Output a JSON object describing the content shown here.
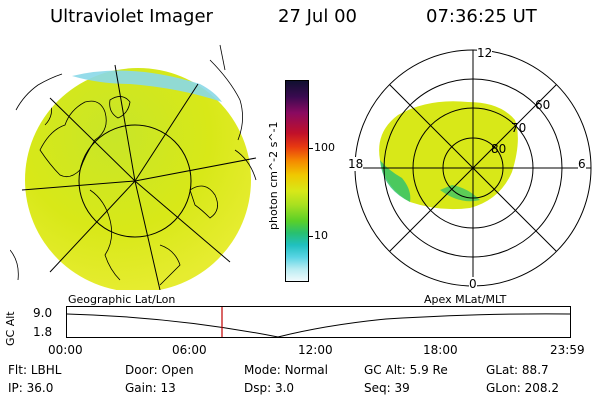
{
  "header": {
    "title": "Ultraviolet Imager",
    "date": "27 Jul 00",
    "time": "07:36:25 UT"
  },
  "colorbar": {
    "label": "photon cm^-2 s^-1",
    "ticks": [
      "100",
      "10"
    ],
    "colors": [
      "#101030",
      "#3a0a50",
      "#8a0a60",
      "#c0102a",
      "#e83a10",
      "#f58a00",
      "#f0c800",
      "#d8e818",
      "#a8e020",
      "#5ad028",
      "#28c070",
      "#20c0c0",
      "#58d4e4",
      "#b8ecf2",
      "#f0fafc"
    ]
  },
  "geo_panel": {
    "label": "Geographic Lat/Lon"
  },
  "polar_panel": {
    "label": "Apex MLat/MLT",
    "mlt_labels": [
      "12",
      "18",
      "6",
      "0"
    ],
    "lat_labels": [
      "60",
      "70",
      "80"
    ]
  },
  "altitude_plot": {
    "ylabel": "GC Alt",
    "yticks": [
      "9.0",
      "1.8"
    ],
    "xticks": [
      "00:00",
      "06:00",
      "12:00",
      "18:00",
      "23:59"
    ]
  },
  "info": {
    "filter_label": "Flt:",
    "filter_value": "LBHL",
    "door_label": "Door:",
    "door_value": "Open",
    "mode_label": "Mode:",
    "mode_value": "Normal",
    "gcalt_label": "GC Alt:",
    "gcalt_value": "5.9 Re",
    "glat_label": "GLat:",
    "glat_value": "88.7",
    "ip_label": "IP:",
    "ip_value": "36.0",
    "gain_label": "Gain:",
    "gain_value": "13",
    "dsp_label": "Dsp:",
    "dsp_value": "3.0",
    "seq_label": "Seq:",
    "seq_value": "39",
    "glon_label": "GLon:",
    "glon_value": "208.2"
  }
}
